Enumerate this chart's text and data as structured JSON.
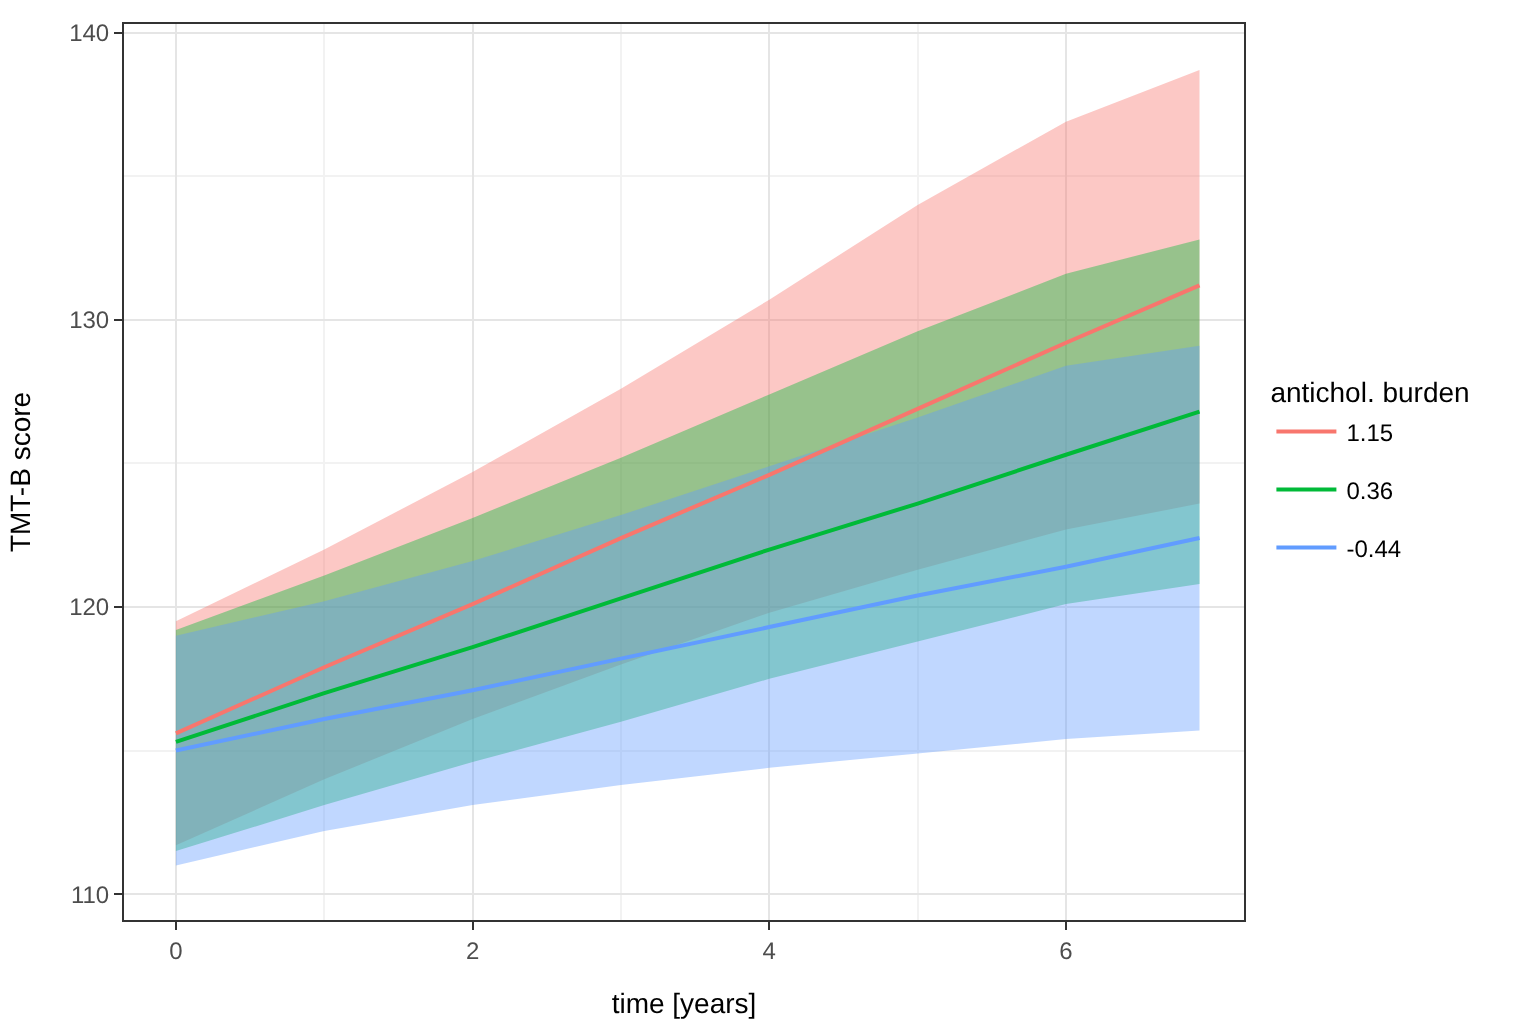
{
  "chart_data": {
    "type": "line",
    "xlabel": "time [years]",
    "ylabel": "TMT-B score",
    "legend_title": "antichol. burden",
    "x": [
      0,
      1,
      2,
      3,
      4,
      5,
      6,
      6.9
    ],
    "series": [
      {
        "name": "1.15",
        "color": "#f8766d",
        "values": [
          115.6,
          117.9,
          120.1,
          122.4,
          124.6,
          126.9,
          129.2,
          131.2
        ],
        "lower": [
          111.7,
          114.0,
          116.1,
          118.0,
          119.8,
          121.3,
          122.7,
          123.6
        ],
        "upper": [
          119.5,
          122.0,
          124.7,
          127.6,
          130.7,
          134.0,
          136.9,
          138.7
        ]
      },
      {
        "name": "0.36",
        "color": "#00ba38",
        "values": [
          115.3,
          117.0,
          118.6,
          120.3,
          122.0,
          123.6,
          125.3,
          126.8
        ],
        "lower": [
          111.5,
          113.1,
          114.6,
          116.0,
          117.5,
          118.8,
          120.1,
          120.8
        ],
        "upper": [
          119.2,
          121.1,
          123.1,
          125.2,
          127.4,
          129.6,
          131.6,
          132.8
        ]
      },
      {
        "name": "-0.44",
        "color": "#619cff",
        "values": [
          115.0,
          116.1,
          117.1,
          118.2,
          119.3,
          120.4,
          121.4,
          122.4
        ],
        "lower": [
          111.0,
          112.2,
          113.1,
          113.8,
          114.4,
          114.9,
          115.4,
          115.7
        ],
        "upper": [
          119.0,
          120.2,
          121.6,
          123.2,
          124.9,
          126.6,
          128.4,
          129.1
        ]
      }
    ],
    "xlim": [
      -0.35,
      7.2
    ],
    "xticks": [
      0,
      2,
      4,
      6
    ],
    "ylim": [
      109.1,
      140.3
    ],
    "yticks": [
      110,
      120,
      130,
      140
    ],
    "grid": true,
    "legend": "right",
    "line_style": "solid",
    "marker": "none"
  }
}
